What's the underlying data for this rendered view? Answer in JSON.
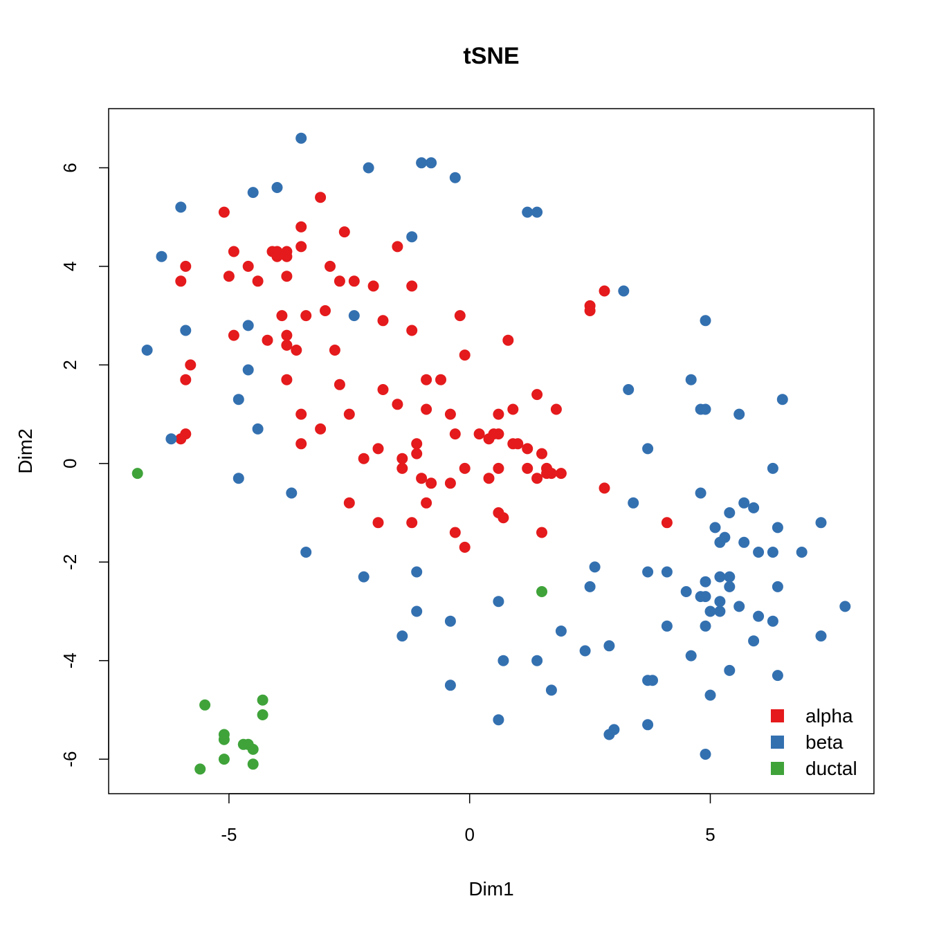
{
  "chart_data": {
    "type": "scatter",
    "title": "tSNE",
    "xlabel": "Dim1",
    "ylabel": "Dim2",
    "xlim": [
      -7.5,
      8.4
    ],
    "ylim": [
      -6.7,
      7.2
    ],
    "xticks": [
      -5,
      0,
      5
    ],
    "yticks": [
      -6,
      -4,
      -2,
      0,
      2,
      4,
      6
    ],
    "grid": false,
    "legend_position": "bottom-right",
    "series": [
      {
        "name": "alpha",
        "color": "#E41A1C",
        "points": [
          [
            -5.1,
            5.1
          ],
          [
            -3.1,
            5.4
          ],
          [
            -3.5,
            4.8
          ],
          [
            -2.6,
            4.7
          ],
          [
            -4.9,
            4.3
          ],
          [
            -4.1,
            4.3
          ],
          [
            -4.0,
            4.3
          ],
          [
            -3.8,
            4.3
          ],
          [
            -4.0,
            4.2
          ],
          [
            -3.8,
            4.2
          ],
          [
            -3.5,
            4.4
          ],
          [
            -1.5,
            4.4
          ],
          [
            -5.9,
            4.0
          ],
          [
            -4.6,
            4.0
          ],
          [
            -2.9,
            4.0
          ],
          [
            -6.0,
            3.7
          ],
          [
            -5.0,
            3.8
          ],
          [
            -4.4,
            3.7
          ],
          [
            -3.8,
            3.8
          ],
          [
            -2.7,
            3.7
          ],
          [
            -2.4,
            3.7
          ],
          [
            -2.0,
            3.6
          ],
          [
            -1.2,
            3.6
          ],
          [
            2.8,
            3.5
          ],
          [
            2.5,
            3.2
          ],
          [
            2.5,
            3.1
          ],
          [
            -3.0,
            3.1
          ],
          [
            -3.4,
            3.0
          ],
          [
            -3.9,
            3.0
          ],
          [
            -1.8,
            2.9
          ],
          [
            -0.2,
            3.0
          ],
          [
            -4.9,
            2.6
          ],
          [
            -3.8,
            2.6
          ],
          [
            -4.2,
            2.5
          ],
          [
            -3.8,
            2.4
          ],
          [
            -2.8,
            2.3
          ],
          [
            -3.6,
            2.3
          ],
          [
            -1.2,
            2.7
          ],
          [
            0.8,
            2.5
          ],
          [
            -0.1,
            2.2
          ],
          [
            -5.8,
            2.0
          ],
          [
            -3.8,
            1.7
          ],
          [
            -5.9,
            1.7
          ],
          [
            -0.9,
            1.7
          ],
          [
            -0.6,
            1.7
          ],
          [
            -2.7,
            1.6
          ],
          [
            -1.8,
            1.5
          ],
          [
            -1.5,
            1.2
          ],
          [
            1.4,
            1.4
          ],
          [
            -3.5,
            1.0
          ],
          [
            -2.5,
            1.0
          ],
          [
            -0.9,
            1.1
          ],
          [
            -0.4,
            1.0
          ],
          [
            0.9,
            1.1
          ],
          [
            1.8,
            1.1
          ],
          [
            0.6,
            1.0
          ],
          [
            -3.1,
            0.7
          ],
          [
            -5.9,
            0.6
          ],
          [
            -6.0,
            0.5
          ],
          [
            -3.5,
            0.4
          ],
          [
            -0.3,
            0.6
          ],
          [
            0.2,
            0.6
          ],
          [
            0.4,
            0.5
          ],
          [
            0.5,
            0.6
          ],
          [
            0.6,
            0.6
          ],
          [
            -1.9,
            0.3
          ],
          [
            -1.1,
            0.4
          ],
          [
            0.9,
            0.4
          ],
          [
            1.0,
            0.4
          ],
          [
            1.2,
            0.3
          ],
          [
            -2.2,
            0.1
          ],
          [
            -1.4,
            0.1
          ],
          [
            -1.1,
            0.2
          ],
          [
            1.5,
            0.2
          ],
          [
            -1.4,
            -0.1
          ],
          [
            -0.1,
            -0.1
          ],
          [
            1.2,
            -0.1
          ],
          [
            1.6,
            -0.1
          ],
          [
            1.9,
            -0.2
          ],
          [
            -1.0,
            -0.3
          ],
          [
            -0.8,
            -0.4
          ],
          [
            -0.4,
            -0.4
          ],
          [
            0.4,
            -0.3
          ],
          [
            0.6,
            -0.1
          ],
          [
            1.4,
            -0.3
          ],
          [
            1.6,
            -0.2
          ],
          [
            1.7,
            -0.2
          ],
          [
            2.8,
            -0.5
          ],
          [
            -2.5,
            -0.8
          ],
          [
            -0.9,
            -0.8
          ],
          [
            0.6,
            -1.0
          ],
          [
            0.7,
            -1.1
          ],
          [
            -1.2,
            -1.2
          ],
          [
            -1.9,
            -1.2
          ],
          [
            -0.3,
            -1.4
          ],
          [
            1.5,
            -1.4
          ],
          [
            4.1,
            -1.2
          ],
          [
            -0.1,
            -1.7
          ]
        ]
      },
      {
        "name": "beta",
        "color": "#3370B0",
        "points": [
          [
            -3.5,
            6.6
          ],
          [
            -2.1,
            6.0
          ],
          [
            -1.0,
            6.1
          ],
          [
            -0.8,
            6.1
          ],
          [
            -0.3,
            5.8
          ],
          [
            -4.5,
            5.5
          ],
          [
            -4.0,
            5.6
          ],
          [
            -6.0,
            5.2
          ],
          [
            1.2,
            5.1
          ],
          [
            1.4,
            5.1
          ],
          [
            -1.2,
            4.6
          ],
          [
            -6.4,
            4.2
          ],
          [
            3.2,
            3.5
          ],
          [
            -2.4,
            3.0
          ],
          [
            -4.6,
            2.8
          ],
          [
            -5.9,
            2.7
          ],
          [
            -6.7,
            2.3
          ],
          [
            4.9,
            2.9
          ],
          [
            -4.6,
            1.9
          ],
          [
            3.3,
            1.5
          ],
          [
            4.6,
            1.7
          ],
          [
            -4.8,
            1.3
          ],
          [
            4.8,
            1.1
          ],
          [
            4.9,
            1.1
          ],
          [
            5.6,
            1.0
          ],
          [
            6.5,
            1.3
          ],
          [
            -6.2,
            0.5
          ],
          [
            -4.4,
            0.7
          ],
          [
            3.7,
            0.3
          ],
          [
            -4.8,
            -0.3
          ],
          [
            -3.7,
            -0.6
          ],
          [
            3.4,
            -0.8
          ],
          [
            4.8,
            -0.6
          ],
          [
            6.3,
            -0.1
          ],
          [
            5.7,
            -0.8
          ],
          [
            5.9,
            -0.9
          ],
          [
            5.4,
            -1.0
          ],
          [
            5.1,
            -1.3
          ],
          [
            5.3,
            -1.5
          ],
          [
            5.2,
            -1.6
          ],
          [
            5.7,
            -1.6
          ],
          [
            6.0,
            -1.8
          ],
          [
            6.3,
            -1.8
          ],
          [
            6.4,
            -1.3
          ],
          [
            7.3,
            -1.2
          ],
          [
            6.9,
            -1.8
          ],
          [
            -3.4,
            -1.8
          ],
          [
            -1.1,
            -2.2
          ],
          [
            -2.2,
            -2.3
          ],
          [
            2.6,
            -2.1
          ],
          [
            3.7,
            -2.2
          ],
          [
            4.1,
            -2.2
          ],
          [
            4.5,
            -2.6
          ],
          [
            2.5,
            -2.5
          ],
          [
            4.9,
            -2.4
          ],
          [
            5.2,
            -2.3
          ],
          [
            5.4,
            -2.3
          ],
          [
            5.4,
            -2.5
          ],
          [
            4.8,
            -2.7
          ],
          [
            4.9,
            -2.7
          ],
          [
            5.2,
            -2.8
          ],
          [
            5.0,
            -3.0
          ],
          [
            5.2,
            -3.0
          ],
          [
            5.6,
            -2.9
          ],
          [
            6.4,
            -2.5
          ],
          [
            6.0,
            -3.1
          ],
          [
            6.3,
            -3.2
          ],
          [
            7.8,
            -2.9
          ],
          [
            0.6,
            -2.8
          ],
          [
            -1.1,
            -3.0
          ],
          [
            -0.4,
            -3.2
          ],
          [
            -1.4,
            -3.5
          ],
          [
            1.9,
            -3.4
          ],
          [
            4.1,
            -3.3
          ],
          [
            4.9,
            -3.3
          ],
          [
            2.4,
            -3.8
          ],
          [
            2.9,
            -3.7
          ],
          [
            0.7,
            -4.0
          ],
          [
            1.4,
            -4.0
          ],
          [
            4.6,
            -3.9
          ],
          [
            5.9,
            -3.6
          ],
          [
            7.3,
            -3.5
          ],
          [
            5.4,
            -4.2
          ],
          [
            6.4,
            -4.3
          ],
          [
            -0.4,
            -4.5
          ],
          [
            1.7,
            -4.6
          ],
          [
            3.7,
            -4.4
          ],
          [
            3.8,
            -4.4
          ],
          [
            5.0,
            -4.7
          ],
          [
            0.6,
            -5.2
          ],
          [
            3.7,
            -5.3
          ],
          [
            2.9,
            -5.5
          ],
          [
            3.0,
            -5.4
          ],
          [
            4.9,
            -5.9
          ]
        ]
      },
      {
        "name": "ductal",
        "color": "#3FA33A",
        "points": [
          [
            -6.9,
            -0.2
          ],
          [
            1.5,
            -2.6
          ],
          [
            -5.5,
            -4.9
          ],
          [
            -4.3,
            -4.8
          ],
          [
            -4.3,
            -5.1
          ],
          [
            -5.1,
            -5.5
          ],
          [
            -5.1,
            -5.6
          ],
          [
            -4.7,
            -5.7
          ],
          [
            -4.6,
            -5.7
          ],
          [
            -4.5,
            -5.8
          ],
          [
            -5.6,
            -6.2
          ],
          [
            -5.1,
            -6.0
          ],
          [
            -4.5,
            -6.1
          ]
        ]
      }
    ]
  }
}
